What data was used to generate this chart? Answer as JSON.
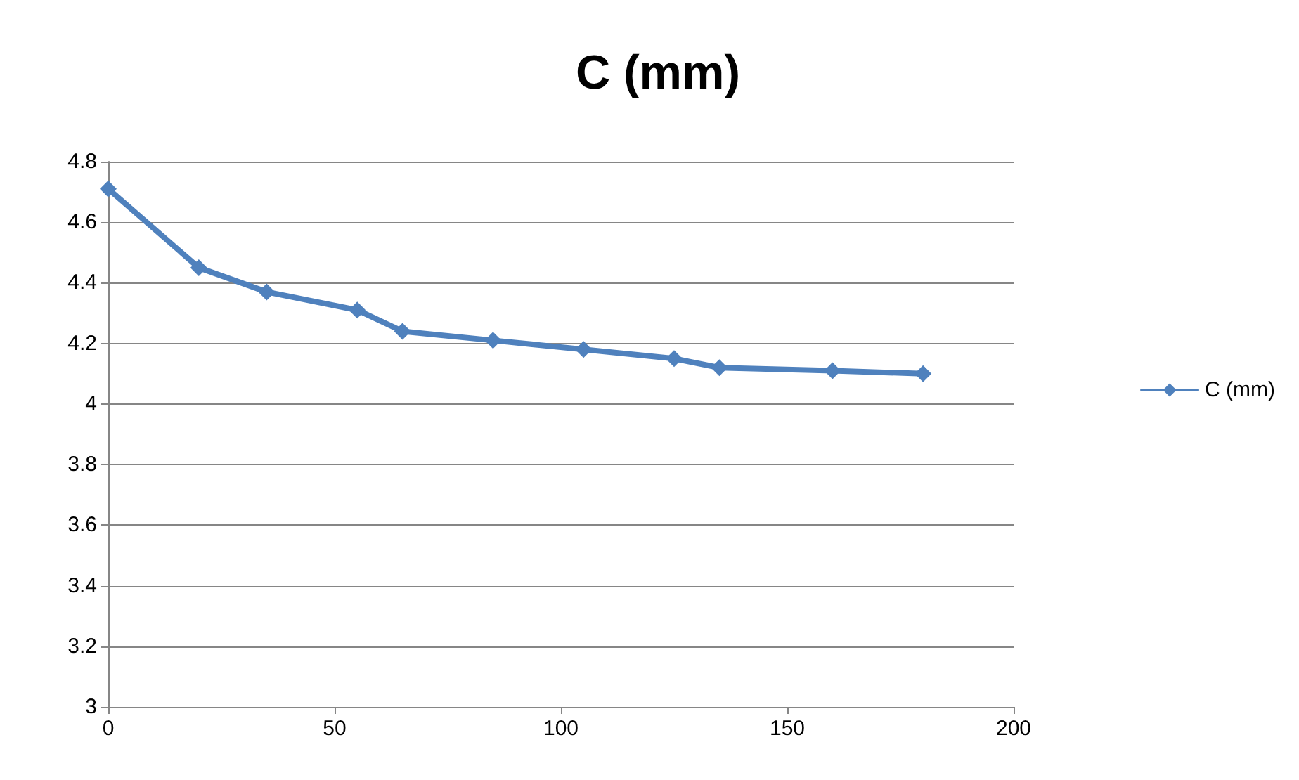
{
  "chart_data": {
    "type": "line",
    "title": "C (mm)",
    "x": [
      0,
      20,
      35,
      55,
      65,
      85,
      105,
      125,
      135,
      160,
      180
    ],
    "series": [
      {
        "name": "C (mm)",
        "color": "#4f81bd",
        "values": [
          4.71,
          4.45,
          4.37,
          4.31,
          4.24,
          4.21,
          4.18,
          4.15,
          4.12,
          4.11,
          4.1
        ]
      }
    ],
    "xlim": [
      0,
      200
    ],
    "xticks": [
      0,
      50,
      100,
      150,
      200
    ],
    "ylim": [
      3,
      4.8
    ],
    "yticks": [
      3,
      3.2,
      3.4,
      3.6,
      3.8,
      4,
      4.2,
      4.4,
      4.6,
      4.8
    ],
    "grid": "y",
    "legend": "right",
    "marker": "diamond",
    "line_style": "solid"
  }
}
